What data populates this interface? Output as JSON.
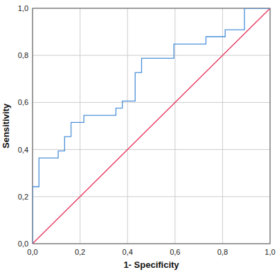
{
  "chart_data": {
    "type": "line",
    "x_label": "1- Specificity",
    "y_label": "Sensitivity",
    "xlim": [
      0,
      1
    ],
    "ylim": [
      0,
      1
    ],
    "xticks": [
      {
        "value": 0,
        "label": "0,0"
      },
      {
        "value": 0.2,
        "label": "0,2"
      },
      {
        "value": 0.4,
        "label": "0,4"
      },
      {
        "value": 0.6,
        "label": "0,6"
      },
      {
        "value": 0.8,
        "label": "0,8"
      },
      {
        "value": 1,
        "label": "1,0"
      }
    ],
    "yticks": [
      {
        "value": 0,
        "label": "0,0"
      },
      {
        "value": 0.2,
        "label": "0,2"
      },
      {
        "value": 0.4,
        "label": "0,4"
      },
      {
        "value": 0.6,
        "label": "0,6"
      },
      {
        "value": 0.8,
        "label": "0,8"
      },
      {
        "value": 1,
        "label": "1,0"
      }
    ],
    "grid": true,
    "series": [
      {
        "color": "#4a90d9",
        "x": [
          0,
          0,
          0.027,
          0.027,
          0.108,
          0.108,
          0.135,
          0.135,
          0.162,
          0.162,
          0.216,
          0.216,
          0.351,
          0.351,
          0.378,
          0.378,
          0.432,
          0.432,
          0.459,
          0.459,
          0.595,
          0.595,
          0.73,
          0.73,
          0.811,
          0.811,
          0.892,
          0.892,
          1
        ],
        "values": [
          0,
          0.242,
          0.242,
          0.364,
          0.364,
          0.394,
          0.394,
          0.455,
          0.455,
          0.515,
          0.515,
          0.545,
          0.545,
          0.576,
          0.576,
          0.606,
          0.606,
          0.727,
          0.727,
          0.788,
          0.788,
          0.848,
          0.848,
          0.879,
          0.879,
          0.909,
          0.909,
          1,
          1
        ]
      },
      {
        "color": "#e8325a",
        "x": [
          0,
          1
        ],
        "values": [
          0,
          1
        ]
      }
    ]
  }
}
